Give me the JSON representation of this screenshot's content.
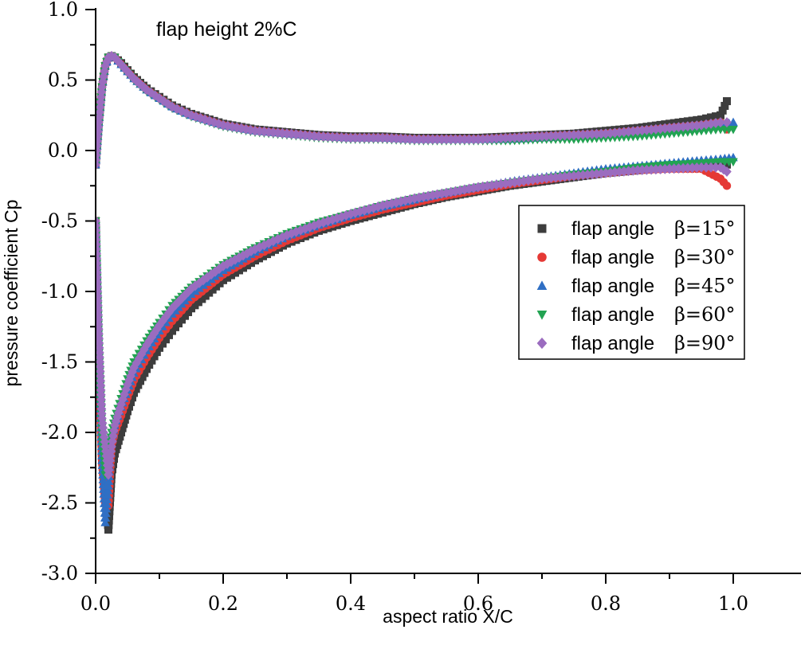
{
  "chart_data": {
    "type": "scatter",
    "annotation": "flap height 2%C",
    "xlabel": "aspect ratio X/C",
    "ylabel": "pressure coefficient Cp",
    "xlim": [
      0.0,
      1.05
    ],
    "ylim": [
      -3.0,
      1.0
    ],
    "xticks": [
      "0.0",
      "0.2",
      "0.4",
      "0.6",
      "0.8",
      "1.0"
    ],
    "xtick_values": [
      0.0,
      0.2,
      0.4,
      0.6,
      0.8,
      1.0
    ],
    "yticks": [
      "1.0",
      "0.5",
      "0.0",
      "-0.5",
      "-1.0",
      "-1.5",
      "-2.0",
      "-2.5",
      "-3.0"
    ],
    "ytick_values": [
      1.0,
      0.5,
      0.0,
      -0.5,
      -1.0,
      -1.5,
      -2.0,
      -2.5,
      -3.0
    ],
    "grid": false,
    "legend_position": "right-middle",
    "series": [
      {
        "name": "flap angle",
        "beta": "β=15°",
        "marker": "square",
        "color": "#3d3d3d",
        "upper": {
          "x": [
            0.0,
            0.005,
            0.01,
            0.015,
            0.02,
            0.025,
            0.03,
            0.04,
            0.05,
            0.06,
            0.08,
            0.1,
            0.12,
            0.15,
            0.2,
            0.25,
            0.3,
            0.35,
            0.4,
            0.45,
            0.5,
            0.55,
            0.6,
            0.65,
            0.7,
            0.75,
            0.8,
            0.85,
            0.9,
            0.95,
            0.98,
            0.99
          ],
          "y": [
            -0.1,
            0.2,
            0.45,
            0.6,
            0.66,
            0.67,
            0.66,
            0.62,
            0.57,
            0.52,
            0.44,
            0.38,
            0.32,
            0.26,
            0.19,
            0.15,
            0.13,
            0.11,
            0.1,
            0.1,
            0.09,
            0.09,
            0.09,
            0.1,
            0.11,
            0.12,
            0.14,
            0.16,
            0.19,
            0.22,
            0.25,
            0.35
          ]
        },
        "lower": {
          "x": [
            0.0,
            0.005,
            0.01,
            0.015,
            0.02,
            0.025,
            0.03,
            0.04,
            0.05,
            0.06,
            0.08,
            0.1,
            0.12,
            0.15,
            0.2,
            0.25,
            0.3,
            0.35,
            0.4,
            0.45,
            0.5,
            0.55,
            0.6,
            0.65,
            0.7,
            0.75,
            0.8,
            0.85,
            0.9,
            0.95,
            0.98,
            0.99
          ],
          "y": [
            -0.5,
            -1.5,
            -2.2,
            -2.4,
            -2.69,
            -2.3,
            -2.15,
            -2.0,
            -1.85,
            -1.72,
            -1.55,
            -1.4,
            -1.28,
            -1.12,
            -0.92,
            -0.78,
            -0.66,
            -0.57,
            -0.5,
            -0.44,
            -0.38,
            -0.33,
            -0.29,
            -0.25,
            -0.22,
            -0.19,
            -0.16,
            -0.14,
            -0.12,
            -0.11,
            -0.1,
            -0.1
          ]
        }
      },
      {
        "name": "flap angle",
        "beta": "β=30°",
        "marker": "circle",
        "color": "#e53935",
        "upper": {
          "x": [
            0.0,
            0.005,
            0.01,
            0.015,
            0.02,
            0.025,
            0.03,
            0.04,
            0.05,
            0.06,
            0.08,
            0.1,
            0.12,
            0.15,
            0.2,
            0.25,
            0.3,
            0.35,
            0.4,
            0.45,
            0.5,
            0.55,
            0.6,
            0.65,
            0.7,
            0.75,
            0.8,
            0.85,
            0.9,
            0.95,
            0.98,
            0.99
          ],
          "y": [
            -0.1,
            0.2,
            0.45,
            0.6,
            0.66,
            0.67,
            0.66,
            0.61,
            0.56,
            0.51,
            0.43,
            0.37,
            0.31,
            0.25,
            0.18,
            0.14,
            0.12,
            0.1,
            0.09,
            0.09,
            0.08,
            0.08,
            0.08,
            0.09,
            0.1,
            0.11,
            0.12,
            0.14,
            0.16,
            0.18,
            0.2,
            0.15
          ]
        },
        "lower": {
          "x": [
            0.0,
            0.005,
            0.01,
            0.015,
            0.02,
            0.025,
            0.03,
            0.04,
            0.05,
            0.06,
            0.08,
            0.1,
            0.12,
            0.15,
            0.2,
            0.25,
            0.3,
            0.35,
            0.4,
            0.45,
            0.5,
            0.55,
            0.6,
            0.65,
            0.7,
            0.75,
            0.8,
            0.85,
            0.9,
            0.95,
            0.98,
            0.99
          ],
          "y": [
            -0.5,
            -1.5,
            -2.2,
            -2.5,
            -2.52,
            -2.1,
            -2.0,
            -1.88,
            -1.75,
            -1.63,
            -1.47,
            -1.33,
            -1.21,
            -1.06,
            -0.88,
            -0.75,
            -0.64,
            -0.55,
            -0.48,
            -0.42,
            -0.37,
            -0.32,
            -0.28,
            -0.24,
            -0.21,
            -0.18,
            -0.16,
            -0.14,
            -0.13,
            -0.13,
            -0.2,
            -0.25
          ]
        }
      },
      {
        "name": "flap angle",
        "beta": "β=45°",
        "marker": "triangle-up",
        "color": "#2f6fc4",
        "upper": {
          "x": [
            0.0,
            0.005,
            0.01,
            0.015,
            0.02,
            0.025,
            0.03,
            0.04,
            0.05,
            0.06,
            0.08,
            0.1,
            0.12,
            0.15,
            0.2,
            0.25,
            0.3,
            0.35,
            0.4,
            0.45,
            0.5,
            0.55,
            0.6,
            0.65,
            0.7,
            0.75,
            0.8,
            0.85,
            0.9,
            0.95,
            0.98,
            1.0
          ],
          "y": [
            -0.1,
            0.2,
            0.45,
            0.6,
            0.66,
            0.67,
            0.66,
            0.61,
            0.56,
            0.51,
            0.43,
            0.37,
            0.31,
            0.25,
            0.18,
            0.14,
            0.12,
            0.1,
            0.09,
            0.09,
            0.08,
            0.08,
            0.08,
            0.08,
            0.09,
            0.1,
            0.11,
            0.12,
            0.14,
            0.16,
            0.18,
            0.2
          ]
        },
        "lower": {
          "x": [
            0.0,
            0.005,
            0.01,
            0.015,
            0.02,
            0.025,
            0.03,
            0.04,
            0.05,
            0.06,
            0.08,
            0.1,
            0.12,
            0.15,
            0.2,
            0.25,
            0.3,
            0.35,
            0.4,
            0.45,
            0.5,
            0.55,
            0.6,
            0.65,
            0.7,
            0.75,
            0.8,
            0.85,
            0.9,
            0.95,
            0.98,
            1.0
          ],
          "y": [
            -0.5,
            -1.5,
            -2.2,
            -2.64,
            -2.38,
            -2.05,
            -1.95,
            -1.82,
            -1.7,
            -1.58,
            -1.42,
            -1.28,
            -1.16,
            -1.02,
            -0.85,
            -0.72,
            -0.61,
            -0.53,
            -0.46,
            -0.4,
            -0.35,
            -0.3,
            -0.26,
            -0.22,
            -0.19,
            -0.16,
            -0.13,
            -0.11,
            -0.09,
            -0.07,
            -0.06,
            -0.05
          ]
        }
      },
      {
        "name": "flap angle",
        "beta": "β=60°",
        "marker": "triangle-down",
        "color": "#22a352",
        "upper": {
          "x": [
            0.0,
            0.005,
            0.01,
            0.015,
            0.02,
            0.025,
            0.03,
            0.04,
            0.05,
            0.06,
            0.08,
            0.1,
            0.12,
            0.15,
            0.2,
            0.25,
            0.3,
            0.35,
            0.4,
            0.45,
            0.5,
            0.55,
            0.6,
            0.65,
            0.7,
            0.75,
            0.8,
            0.85,
            0.9,
            0.95,
            0.98,
            1.0
          ],
          "y": [
            -0.1,
            0.2,
            0.45,
            0.6,
            0.66,
            0.67,
            0.66,
            0.6,
            0.55,
            0.5,
            0.42,
            0.36,
            0.3,
            0.24,
            0.17,
            0.13,
            0.11,
            0.09,
            0.08,
            0.08,
            0.07,
            0.07,
            0.07,
            0.07,
            0.08,
            0.08,
            0.09,
            0.1,
            0.12,
            0.14,
            0.15,
            0.15
          ]
        },
        "lower": {
          "x": [
            0.0,
            0.005,
            0.01,
            0.015,
            0.02,
            0.025,
            0.03,
            0.04,
            0.05,
            0.06,
            0.08,
            0.1,
            0.12,
            0.15,
            0.2,
            0.25,
            0.3,
            0.35,
            0.4,
            0.45,
            0.5,
            0.55,
            0.6,
            0.65,
            0.7,
            0.75,
            0.8,
            0.85,
            0.9,
            0.95,
            0.98,
            1.0
          ],
          "y": [
            -0.5,
            -1.4,
            -2.0,
            -2.3,
            -2.2,
            -2.0,
            -1.9,
            -1.76,
            -1.62,
            -1.5,
            -1.35,
            -1.22,
            -1.1,
            -0.97,
            -0.81,
            -0.69,
            -0.59,
            -0.51,
            -0.45,
            -0.39,
            -0.34,
            -0.3,
            -0.26,
            -0.23,
            -0.2,
            -0.17,
            -0.15,
            -0.12,
            -0.1,
            -0.09,
            -0.08,
            -0.08
          ]
        }
      },
      {
        "name": "flap angle",
        "beta": "β=90°",
        "marker": "diamond",
        "color": "#9b6cbf",
        "upper": {
          "x": [
            0.0,
            0.005,
            0.01,
            0.015,
            0.02,
            0.025,
            0.03,
            0.04,
            0.05,
            0.06,
            0.08,
            0.1,
            0.12,
            0.15,
            0.2,
            0.25,
            0.3,
            0.35,
            0.4,
            0.45,
            0.5,
            0.55,
            0.6,
            0.65,
            0.7,
            0.75,
            0.8,
            0.85,
            0.9,
            0.95,
            0.98,
            0.99
          ],
          "y": [
            -0.1,
            0.2,
            0.45,
            0.6,
            0.66,
            0.67,
            0.66,
            0.61,
            0.56,
            0.51,
            0.43,
            0.37,
            0.31,
            0.25,
            0.18,
            0.14,
            0.12,
            0.1,
            0.09,
            0.09,
            0.08,
            0.08,
            0.08,
            0.09,
            0.1,
            0.11,
            0.12,
            0.14,
            0.16,
            0.18,
            0.2,
            0.2
          ]
        },
        "lower": {
          "x": [
            0.0,
            0.005,
            0.01,
            0.015,
            0.02,
            0.025,
            0.03,
            0.04,
            0.05,
            0.06,
            0.08,
            0.1,
            0.12,
            0.15,
            0.2,
            0.25,
            0.3,
            0.35,
            0.4,
            0.45,
            0.5,
            0.55,
            0.6,
            0.65,
            0.7,
            0.75,
            0.8,
            0.85,
            0.9,
            0.95,
            0.98,
            0.99
          ],
          "y": [
            -0.5,
            -1.3,
            -1.9,
            -2.1,
            -2.3,
            -2.1,
            -1.95,
            -1.8,
            -1.66,
            -1.54,
            -1.38,
            -1.24,
            -1.12,
            -0.98,
            -0.82,
            -0.7,
            -0.6,
            -0.52,
            -0.45,
            -0.39,
            -0.34,
            -0.3,
            -0.26,
            -0.23,
            -0.2,
            -0.18,
            -0.16,
            -0.14,
            -0.13,
            -0.12,
            -0.12,
            -0.15
          ]
        }
      }
    ]
  }
}
